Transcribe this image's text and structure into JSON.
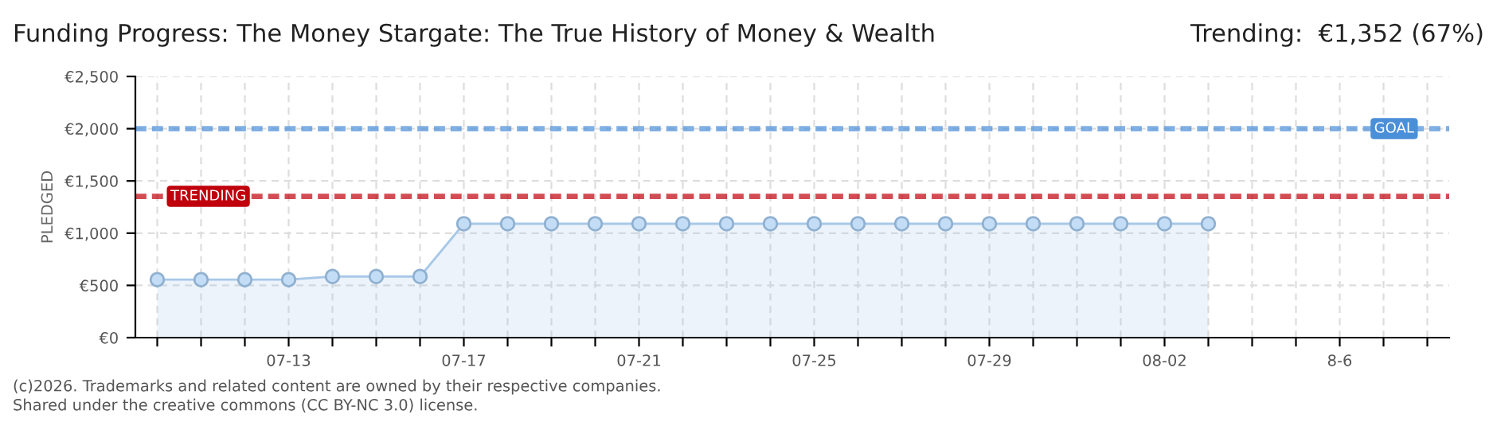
{
  "chart_data": {
    "type": "area",
    "title": "Funding Progress: The Money Stargate: The True History of Money & Wealth",
    "ylabel": "PLEDGED",
    "annotations": [
      "Trending:  €1,352 (67%)",
      "(c)2026. Trademarks and related content are owned by their respective companies.",
      "Shared under the creative commons (CC BY-NC 3.0) license."
    ],
    "categories": [
      null,
      null,
      null,
      "07-13",
      null,
      null,
      null,
      "07-17",
      null,
      null,
      null,
      "07-21",
      null,
      null,
      null,
      "07-25",
      null,
      null,
      null,
      "07-29",
      null,
      null,
      null,
      "08-02",
      null,
      null,
      null,
      "8-6",
      null,
      null
    ],
    "series": [
      {
        "color": "#a8c8e8",
        "values": [
          555,
          555,
          555,
          555,
          585,
          585,
          585,
          1090,
          1090,
          1090,
          1090,
          1090,
          1090,
          1090,
          1090,
          1090,
          1090,
          1090,
          1090,
          1090,
          1090,
          1090,
          1090,
          1090,
          1090,
          null,
          null,
          null,
          null,
          null
        ]
      }
    ],
    "marker": "circle",
    "grid": true,
    "ylim": [
      0,
      2500
    ],
    "yticks": [
      {
        "value": 0,
        "label": "€0"
      },
      {
        "value": 500,
        "label": "€500"
      },
      {
        "value": 1000,
        "label": "€1,000"
      },
      {
        "value": 1500,
        "label": "€1,500"
      },
      {
        "value": 2000,
        "label": "€2,000"
      },
      {
        "value": 2500,
        "label": "€2,500"
      }
    ],
    "ref_lines": [
      {
        "axis": "y",
        "value": 2000,
        "label": "GOAL",
        "color": "#4a8fd8",
        "line_style": "dotted"
      },
      {
        "axis": "y",
        "value": 1352,
        "label": "TRENDING",
        "color": "#c0000c",
        "line_style": "dotted"
      }
    ]
  }
}
